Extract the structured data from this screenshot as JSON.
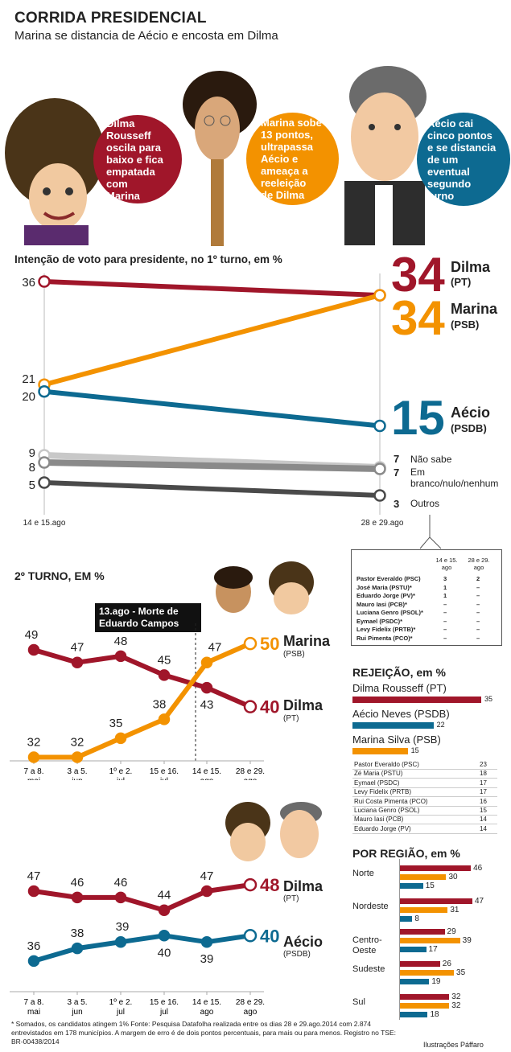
{
  "header": {
    "title": "CORRIDA PRESIDENCIAL",
    "subtitle": "Marina se distancia de Aécio e encosta em Dilma"
  },
  "bubbles": [
    {
      "lines": [
        "Dilma",
        "Rousseff",
        "oscila para",
        "baixo e fica",
        "empatada",
        "com",
        "Marina"
      ],
      "color": "#a0162a"
    },
    {
      "lines": [
        "Marina sobe",
        "13 pontos,",
        "ultrapassa",
        "Aécio e",
        "ameaça a",
        "reeleição",
        "de Dilma"
      ],
      "color": "#f39200"
    },
    {
      "lines": [
        "Aécio cai",
        "cinco pontos",
        "e se distancia",
        "de um",
        "eventual",
        "segundo",
        "turno"
      ],
      "color": "#0d6a91"
    }
  ],
  "colors": {
    "dilma": "#a0162a",
    "marina": "#f39200",
    "aecio": "#0d6a91",
    "gray1": "#c8c8c8",
    "gray2": "#8a8a8a",
    "gray3": "#4a4a4a"
  },
  "chart_data": [
    {
      "type": "line",
      "title": "Intenção de voto para presidente, no 1º turno, em %",
      "categories": [
        "14 e 15.ago",
        "28 e 29.ago"
      ],
      "ylim": [
        0,
        36
      ],
      "series": [
        {
          "name": "Dilma",
          "party": "(PT)",
          "values": [
            36,
            34
          ]
        },
        {
          "name": "Marina",
          "party": "(PSB)",
          "values": [
            21,
            34
          ]
        },
        {
          "name": "Aécio",
          "party": "(PSDB)",
          "values": [
            20,
            15
          ]
        },
        {
          "name": "Não sabe",
          "values": [
            9,
            7
          ]
        },
        {
          "name": "Em branco/nulo/nenhum",
          "values": [
            8,
            7
          ]
        },
        {
          "name": "Outros",
          "values": [
            5,
            3
          ]
        }
      ]
    },
    {
      "type": "line",
      "title": "2º TURNO, EM %",
      "categories": [
        "7 a 8. mai",
        "3 a 5. jun",
        "1º e 2. jul",
        "15 e 16. jul",
        "14 e 15. ago",
        "28 e 29. ago"
      ],
      "annotation": "13.ago - Morte de Eduardo Campos",
      "series": [
        {
          "name": "Dilma",
          "party": "(PT)",
          "values": [
            49,
            47,
            48,
            45,
            43,
            40
          ]
        },
        {
          "name": "Marina",
          "party": "(PSB)",
          "values": [
            32,
            32,
            35,
            38,
            47,
            50
          ]
        }
      ]
    },
    {
      "type": "line",
      "categories": [
        "7 a 8. mai",
        "3 a 5. jun",
        "1º e 2. jul",
        "15 e 16. jul",
        "14 e 15. ago",
        "28 e 29. ago"
      ],
      "series": [
        {
          "name": "Dilma",
          "party": "(PT)",
          "values": [
            47,
            46,
            46,
            44,
            47,
            48
          ]
        },
        {
          "name": "Aécio",
          "party": "(PSDB)",
          "values": [
            36,
            38,
            39,
            40,
            39,
            40
          ]
        }
      ]
    },
    {
      "type": "bar",
      "title": "REJEIÇÃO, em %",
      "main": [
        {
          "name": "Dilma Rousseff (PT)",
          "value": 35
        },
        {
          "name": "Aécio Neves (PSDB)",
          "value": 22
        },
        {
          "name": "Marina Silva (PSB)",
          "value": 15
        }
      ],
      "others": [
        {
          "name": "Pastor Everaldo (PSC)",
          "value": 23
        },
        {
          "name": "Zé Maria (PSTU)",
          "value": 18
        },
        {
          "name": "Eymael (PSDC)",
          "value": 17
        },
        {
          "name": "Levy Fidelix (PRTB)",
          "value": 17
        },
        {
          "name": "Rui Costa Pimenta (PCO)",
          "value": 16
        },
        {
          "name": "Luciana Genro (PSOL)",
          "value": 15
        },
        {
          "name": "Mauro Iasi (PCB)",
          "value": 14
        },
        {
          "name": "Eduardo Jorge (PV)",
          "value": 14
        }
      ]
    },
    {
      "type": "bar",
      "title": "POR REGIÃO, em %",
      "categories": [
        "Norte",
        "Nordeste",
        "Centro-Oeste",
        "Sudeste",
        "Sul"
      ],
      "series": [
        {
          "name": "Dilma",
          "values": [
            46,
            47,
            29,
            26,
            32
          ]
        },
        {
          "name": "Marina",
          "values": [
            30,
            31,
            39,
            35,
            32
          ]
        },
        {
          "name": "Aécio",
          "values": [
            15,
            8,
            17,
            19,
            18
          ]
        }
      ]
    }
  ],
  "table": {
    "headers": [
      "14 e 15. ago",
      "28 e 29. ago"
    ],
    "rows": [
      {
        "name": "Pastor Everaldo (PSC)",
        "a": "3",
        "b": "2"
      },
      {
        "name": "José Maria (PSTU)*",
        "a": "1",
        "b": "–"
      },
      {
        "name": "Eduardo Jorge (PV)*",
        "a": "1",
        "b": "–"
      },
      {
        "name": "Mauro Iasi (PCB)*",
        "a": "–",
        "b": "–"
      },
      {
        "name": "Luciana Genro (PSOL)*",
        "a": "–",
        "b": "–"
      },
      {
        "name": "Eymael (PSDC)*",
        "a": "–",
        "b": "–"
      },
      {
        "name": "Levy Fidelix (PRTB)*",
        "a": "–",
        "b": "–"
      },
      {
        "name": "Rui Pimenta (PCO)*",
        "a": "–",
        "b": "–"
      }
    ]
  },
  "footnote": "* Somados, os candidatos atingem 1% Fonte: Pesquisa Datafolha realizada entre os dias 28 e 29.ago.2014 com 2.874 entrevistados em 178 municípios. A margem de erro é de dois pontos percentuais, para mais ou para menos. Registro no TSE: BR-00438/2014",
  "credit": "Ilustrações Páffaro"
}
